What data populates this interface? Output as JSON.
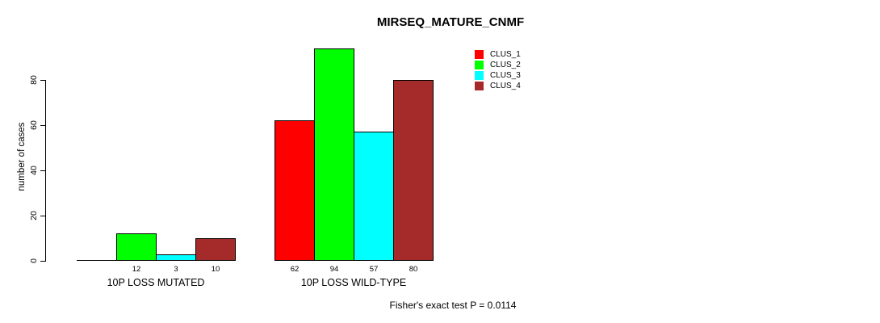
{
  "chart_data": {
    "type": "bar",
    "title": "MIRSEQ_MATURE_CNMF",
    "xlabel": "",
    "ylabel": "number of cases",
    "ylim": [
      0,
      80
    ],
    "yticks": [
      0,
      20,
      40,
      60,
      80
    ],
    "grid": false,
    "legend_position": "top-right",
    "categories": [
      "10P LOSS MUTATED",
      "10P LOSS WILD-TYPE"
    ],
    "series": [
      {
        "name": "CLUS_1",
        "color": "#ff0000",
        "values": [
          0,
          62
        ]
      },
      {
        "name": "CLUS_2",
        "color": "#00ff00",
        "values": [
          12,
          94
        ]
      },
      {
        "name": "CLUS_3",
        "color": "#00ffff",
        "values": [
          3,
          57
        ]
      },
      {
        "name": "CLUS_4",
        "color": "#a52a2a",
        "values": [
          10,
          80
        ]
      }
    ],
    "bar_value_labels": [
      [
        "",
        "12",
        "3",
        "10"
      ],
      [
        "62",
        "94",
        "57",
        "80"
      ]
    ],
    "annotation": "Fisher's exact test P = 0.0114",
    "axis_color": "#000000",
    "background_color": "#ffffff"
  }
}
